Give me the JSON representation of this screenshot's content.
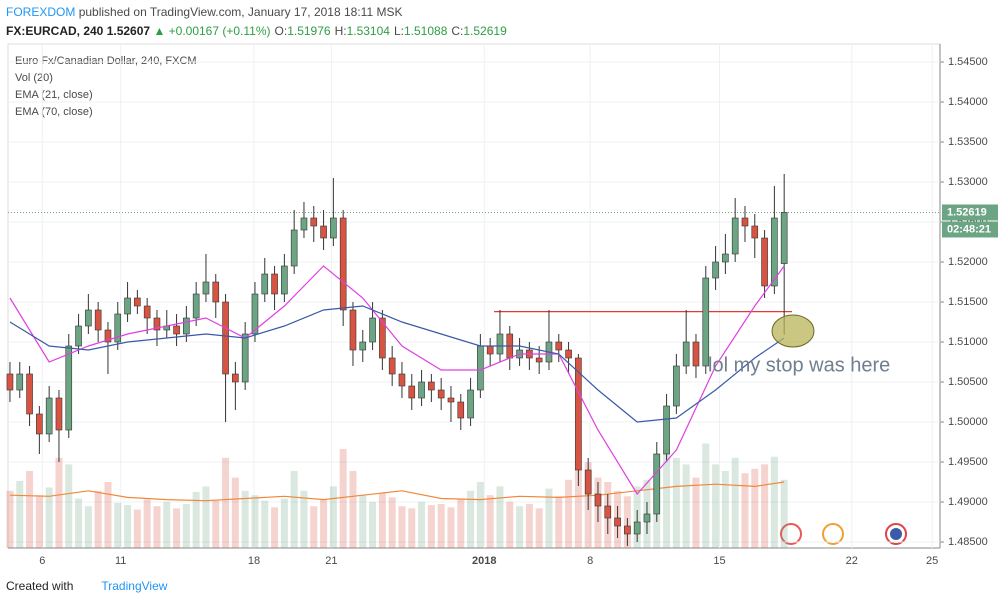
{
  "header": {
    "author": "FOREXDOM",
    "byline": "published on TradingView.com, January 17, 2018 18:11 MSK",
    "symbol": "FX:EURCAD, 240",
    "price": "1.52607",
    "change": "▲ +0.00167 (+0.11%)",
    "ohlc": [
      {
        "label": "O:",
        "value": "1.51976"
      },
      {
        "label": "H:",
        "value": "1.53104"
      },
      {
        "label": "L:",
        "value": "1.51088"
      },
      {
        "label": "C:",
        "value": "1.52619"
      }
    ]
  },
  "footer": {
    "created": "Created with",
    "brand": "TradingView"
  },
  "chart_data": {
    "type": "candlestick",
    "title": "Euro Fx/Canadian Dollar, 240, FXCM",
    "indicators": [
      "Vol (20)",
      "EMA (21, close)",
      "EMA (70, close)"
    ],
    "up_color": "#6ba583",
    "down_color": "#d75442",
    "candles": [
      [
        1.506,
        1.5075,
        1.5025,
        1.504
      ],
      [
        1.504,
        1.5075,
        1.503,
        1.506
      ],
      [
        1.506,
        1.507,
        1.4995,
        1.501
      ],
      [
        1.501,
        1.502,
        1.496,
        1.4985
      ],
      [
        1.4985,
        1.5045,
        1.4975,
        1.503
      ],
      [
        1.503,
        1.504,
        1.495,
        1.499
      ],
      [
        1.499,
        1.511,
        1.498,
        1.5095
      ],
      [
        1.5095,
        1.5135,
        1.5085,
        1.512
      ],
      [
        1.512,
        1.516,
        1.511,
        1.514
      ],
      [
        1.514,
        1.515,
        1.51,
        1.5115
      ],
      [
        1.5115,
        1.5125,
        1.506,
        1.51
      ],
      [
        1.51,
        1.515,
        1.509,
        1.5135
      ],
      [
        1.5135,
        1.5175,
        1.5125,
        1.5155
      ],
      [
        1.5155,
        1.5165,
        1.5135,
        1.5145
      ],
      [
        1.5145,
        1.5155,
        1.511,
        1.513
      ],
      [
        1.513,
        1.514,
        1.5095,
        1.5115
      ],
      [
        1.5115,
        1.514,
        1.5105,
        1.512
      ],
      [
        1.512,
        1.5135,
        1.5095,
        1.511
      ],
      [
        1.511,
        1.5145,
        1.51,
        1.513
      ],
      [
        1.513,
        1.5175,
        1.512,
        1.516
      ],
      [
        1.516,
        1.521,
        1.515,
        1.5175
      ],
      [
        1.5175,
        1.5185,
        1.513,
        1.515
      ],
      [
        1.515,
        1.516,
        1.5,
        1.506
      ],
      [
        1.506,
        1.5075,
        1.5015,
        1.505
      ],
      [
        1.505,
        1.5125,
        1.504,
        1.511
      ],
      [
        1.511,
        1.5175,
        1.51,
        1.516
      ],
      [
        1.516,
        1.5205,
        1.515,
        1.5185
      ],
      [
        1.5185,
        1.5195,
        1.514,
        1.516
      ],
      [
        1.516,
        1.521,
        1.515,
        1.5195
      ],
      [
        1.5195,
        1.5265,
        1.5185,
        1.524
      ],
      [
        1.524,
        1.5275,
        1.523,
        1.5255
      ],
      [
        1.5255,
        1.527,
        1.5225,
        1.5245
      ],
      [
        1.5245,
        1.5265,
        1.5215,
        1.523
      ],
      [
        1.523,
        1.5305,
        1.522,
        1.5255
      ],
      [
        1.5255,
        1.5265,
        1.512,
        1.514
      ],
      [
        1.514,
        1.515,
        1.507,
        1.509
      ],
      [
        1.509,
        1.5115,
        1.5075,
        1.51
      ],
      [
        1.51,
        1.515,
        1.509,
        1.513
      ],
      [
        1.513,
        1.514,
        1.5065,
        1.508
      ],
      [
        1.508,
        1.5095,
        1.5045,
        1.506
      ],
      [
        1.506,
        1.5075,
        1.503,
        1.5045
      ],
      [
        1.5045,
        1.506,
        1.5015,
        1.503
      ],
      [
        1.503,
        1.5065,
        1.502,
        1.505
      ],
      [
        1.505,
        1.506,
        1.5025,
        1.504
      ],
      [
        1.504,
        1.5055,
        1.5015,
        1.503
      ],
      [
        1.503,
        1.5045,
        1.5,
        1.5025
      ],
      [
        1.5025,
        1.5035,
        1.499,
        1.5005
      ],
      [
        1.5005,
        1.5055,
        1.4995,
        1.504
      ],
      [
        1.504,
        1.511,
        1.503,
        1.5095
      ],
      [
        1.5095,
        1.5105,
        1.507,
        1.5085
      ],
      [
        1.5085,
        1.514,
        1.5075,
        1.511
      ],
      [
        1.511,
        1.512,
        1.5065,
        1.508
      ],
      [
        1.508,
        1.5105,
        1.507,
        1.509
      ],
      [
        1.509,
        1.51,
        1.5065,
        1.508
      ],
      [
        1.508,
        1.5095,
        1.506,
        1.5075
      ],
      [
        1.5075,
        1.514,
        1.5065,
        1.51
      ],
      [
        1.51,
        1.511,
        1.5075,
        1.509
      ],
      [
        1.509,
        1.51,
        1.506,
        1.508
      ],
      [
        1.508,
        1.5085,
        1.492,
        1.494
      ],
      [
        1.494,
        1.4955,
        1.489,
        1.491
      ],
      [
        1.491,
        1.4925,
        1.4875,
        1.4895
      ],
      [
        1.4895,
        1.491,
        1.486,
        1.488
      ],
      [
        1.488,
        1.4895,
        1.4855,
        1.487
      ],
      [
        1.487,
        1.488,
        1.4845,
        1.486
      ],
      [
        1.486,
        1.489,
        1.485,
        1.4875
      ],
      [
        1.4875,
        1.49,
        1.486,
        1.4885
      ],
      [
        1.4885,
        1.4975,
        1.4875,
        1.496
      ],
      [
        1.496,
        1.5035,
        1.495,
        1.502
      ],
      [
        1.502,
        1.5085,
        1.501,
        1.507
      ],
      [
        1.507,
        1.514,
        1.506,
        1.51
      ],
      [
        1.51,
        1.511,
        1.5055,
        1.507
      ],
      [
        1.507,
        1.5195,
        1.506,
        1.518
      ],
      [
        1.518,
        1.522,
        1.5165,
        1.52
      ],
      [
        1.52,
        1.5235,
        1.5185,
        1.521
      ],
      [
        1.521,
        1.528,
        1.52,
        1.5255
      ],
      [
        1.5255,
        1.527,
        1.5225,
        1.5245
      ],
      [
        1.5245,
        1.526,
        1.5205,
        1.523
      ],
      [
        1.523,
        1.524,
        1.5155,
        1.517
      ],
      [
        1.517,
        1.5295,
        1.516,
        1.5255
      ],
      [
        1.5198,
        1.531,
        1.5109,
        1.5262
      ]
    ],
    "volume": {
      "ylim": [
        0,
        1000
      ],
      "ma_color": "#f0883a",
      "values": [
        520,
        610,
        700,
        480,
        550,
        820,
        760,
        450,
        380,
        520,
        600,
        410,
        390,
        350,
        440,
        380,
        420,
        360,
        400,
        510,
        560,
        430,
        820,
        640,
        520,
        480,
        430,
        370,
        450,
        700,
        520,
        380,
        440,
        560,
        900,
        700,
        480,
        420,
        500,
        460,
        380,
        360,
        420,
        390,
        400,
        370,
        450,
        520,
        600,
        480,
        560,
        420,
        380,
        400,
        360,
        540,
        470,
        620,
        980,
        780,
        640,
        600,
        520,
        470,
        560,
        620,
        860,
        900,
        820,
        760,
        640,
        950,
        760,
        700,
        820,
        680,
        720,
        760,
        830,
        620
      ],
      "ma": [
        480,
        470,
        520,
        460,
        440,
        430,
        450,
        470,
        440,
        480,
        520,
        450,
        440,
        470,
        460,
        480,
        520,
        560,
        580,
        560,
        600
      ]
    },
    "indicator_x": [
      0,
      4,
      8,
      12,
      16,
      20,
      24,
      28,
      32,
      36,
      40,
      44,
      48,
      52,
      56,
      60,
      64,
      68,
      72,
      76,
      79
    ],
    "lines": [
      {
        "color": "#e040e0",
        "values": [
          1.5155,
          1.5075,
          1.5095,
          1.511,
          1.512,
          1.513,
          1.5105,
          1.5145,
          1.5195,
          1.5155,
          1.5095,
          1.5065,
          1.5065,
          1.5085,
          1.5085,
          1.499,
          1.491,
          1.4965,
          1.507,
          1.5145,
          1.5195
        ]
      },
      {
        "color": "#3a5aa8",
        "values": [
          1.5125,
          1.5095,
          1.509,
          1.51,
          1.5105,
          1.511,
          1.5105,
          1.512,
          1.514,
          1.5145,
          1.5125,
          1.511,
          1.5095,
          1.5095,
          1.5085,
          1.504,
          1.5,
          1.5005,
          1.504,
          1.508,
          1.5105
        ]
      }
    ],
    "ylim": [
      1.48425,
      1.54725
    ],
    "yticks": [
      {
        "value": 1.485,
        "label": "1.48500"
      },
      {
        "value": 1.49,
        "label": "1.49000"
      },
      {
        "value": 1.495,
        "label": "1.49500"
      },
      {
        "value": 1.5,
        "label": "1.50000"
      },
      {
        "value": 1.505,
        "label": "1.50500"
      },
      {
        "value": 1.51,
        "label": "1.51000"
      },
      {
        "value": 1.515,
        "label": "1.51500"
      },
      {
        "value": 1.52,
        "label": "1.52000"
      },
      {
        "value": 1.525,
        "label": "1.52500"
      },
      {
        "value": 1.53,
        "label": "1.53000"
      },
      {
        "value": 1.535,
        "label": "1.53500"
      },
      {
        "value": 1.54,
        "label": "1.54000"
      },
      {
        "value": 1.545,
        "label": "1.54500"
      }
    ],
    "xlim": [
      -0.2,
      94.9
    ],
    "xticks": [
      {
        "value": 3.3,
        "label": "6"
      },
      {
        "value": 11.3,
        "label": "11"
      },
      {
        "value": 24.9,
        "label": "18"
      },
      {
        "value": 32.8,
        "label": "21"
      },
      {
        "value": 48.4,
        "label": "2018"
      },
      {
        "value": 59.2,
        "label": "8"
      },
      {
        "value": 72.4,
        "label": "15"
      },
      {
        "value": 85.9,
        "label": "22"
      },
      {
        "value": 94.1,
        "label": "25"
      }
    ],
    "last_price": {
      "value": 1.52619,
      "label": "1.52619",
      "countdown": "02:48:21"
    },
    "annotation": {
      "text": "lol my stop was here",
      "stop_level": 1.5138,
      "color": "#e53935"
    }
  }
}
